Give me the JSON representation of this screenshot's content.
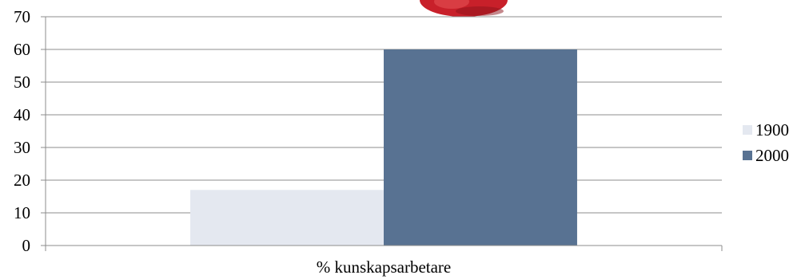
{
  "chart_data": {
    "type": "bar",
    "categories": [
      "% kunskapsarbetare"
    ],
    "series": [
      {
        "name": "1900",
        "values": [
          17
        ],
        "color": "#e4e8f0"
      },
      {
        "name": "2000",
        "values": [
          60
        ],
        "color": "#587292"
      }
    ],
    "ylim": [
      0,
      70
    ],
    "yticks": [
      0,
      10,
      20,
      30,
      40,
      50,
      60,
      70
    ],
    "grid": true,
    "legend_position": "right",
    "decoration": "red-apple-image-top"
  },
  "colors": {
    "gridline": "#8c8c8c",
    "axis": "#8c8c8c",
    "apple": "#c8202a"
  }
}
